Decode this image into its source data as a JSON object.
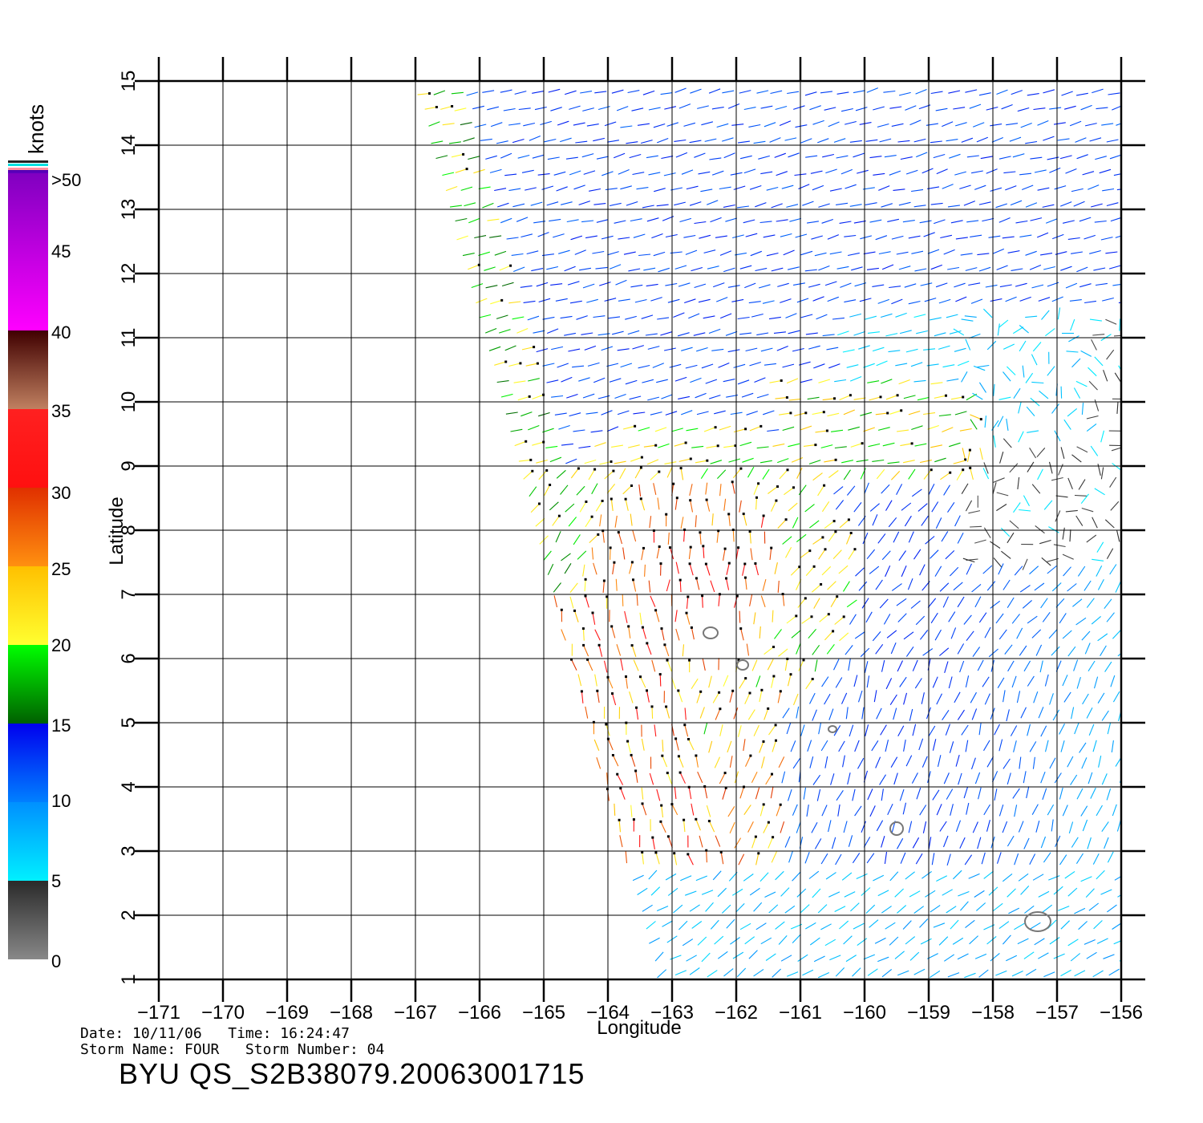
{
  "map": {
    "xlabel": "Longitude",
    "ylabel": "Latitude",
    "lon_range": [
      -171,
      -156
    ],
    "lat_range": [
      1,
      15
    ],
    "lon_ticks": [
      "−171",
      "−170",
      "−169",
      "−168",
      "−167",
      "−166",
      "−165",
      "−164",
      "−163",
      "−162",
      "−161",
      "−160",
      "−159",
      "−158",
      "−157",
      "−156"
    ],
    "lat_ticks": [
      "1",
      "2",
      "3",
      "4",
      "5",
      "6",
      "7",
      "8",
      "9",
      "10",
      "11",
      "12",
      "13",
      "14",
      "15"
    ],
    "grid": true,
    "layers": {
      "wind_vectors": "QuikSCAT/SeaWinds wind barbs colored by speed (knots)",
      "land_contours": "small island outlines (gray)"
    },
    "islands_lonlat": [
      [
        -162.4,
        6.4
      ],
      [
        -161.9,
        5.9
      ],
      [
        -160.5,
        4.9
      ],
      [
        -159.5,
        3.35
      ],
      [
        -157.3,
        1.9
      ]
    ],
    "swath": {
      "west_edge": [
        [
          -167,
          15
        ],
        [
          -163.2,
          1
        ]
      ],
      "east_edge": [
        [
          -156,
          15
        ],
        [
          -156,
          1
        ]
      ]
    }
  },
  "color_scale": {
    "unit": "knots",
    "labels": [
      ">50",
      "45",
      "40",
      "35",
      "30",
      "25",
      "20",
      "15",
      "10",
      "5",
      "0"
    ],
    "bands": [
      {
        "from": 0,
        "to": 5,
        "colors": [
          "#888888",
          "#2a2a2a"
        ]
      },
      {
        "from": 5,
        "to": 10,
        "colors": [
          "#00f0ff",
          "#0090ff"
        ]
      },
      {
        "from": 10,
        "to": 15,
        "colors": [
          "#0080ff",
          "#0000ee"
        ]
      },
      {
        "from": 15,
        "to": 20,
        "colors": [
          "#006000",
          "#00ff00"
        ]
      },
      {
        "from": 20,
        "to": 25,
        "colors": [
          "#ffff30",
          "#ffc000"
        ]
      },
      {
        "from": 25,
        "to": 30,
        "colors": [
          "#ff9010",
          "#e03000"
        ]
      },
      {
        "from": 30,
        "to": 35,
        "colors": [
          "#ff1010",
          "#ff2020"
        ]
      },
      {
        "from": 35,
        "to": 40,
        "colors": [
          "#c08060",
          "#400000"
        ]
      },
      {
        "from": 40,
        "to": 50,
        "colors": [
          "#ff00ff",
          "#8000c0"
        ]
      },
      {
        "from": 50,
        "to": 60,
        "colors": [
          "#6000c0",
          "#5000b0"
        ]
      }
    ]
  },
  "info": {
    "date_line": "Date: 10/11/06   Time: 16:24:47",
    "storm_line": "Storm Name: FOUR   Storm Number: 04",
    "file_id": "BYU QS_S2B38079.20063001715"
  }
}
